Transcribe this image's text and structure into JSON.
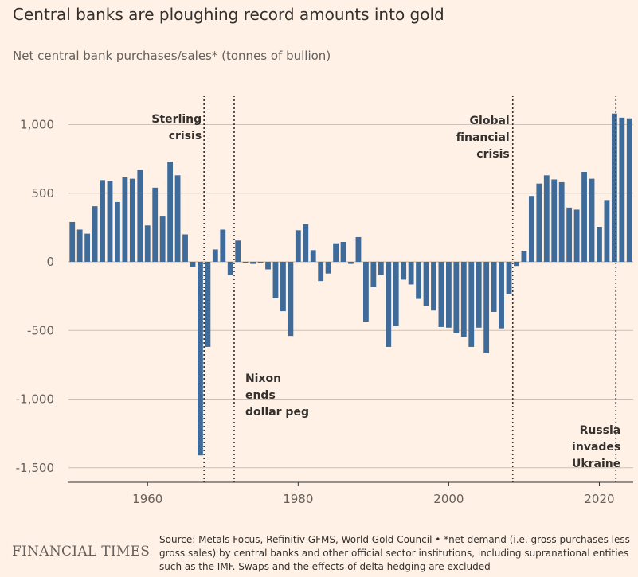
{
  "title": "Central banks are ploughing record amounts into gold",
  "subtitle": "Net central bank purchases/sales* (tonnes of bullion)",
  "source": "Source: Metals Focus, Refinitiv GFMS, World Gold Council • *net demand (i.e. gross purchases less gross sales) by central banks and other official sector institutions, including supranational entities such as the IMF. Swaps and the effects of delta hedging are excluded",
  "brand": "FINANCIAL TIMES",
  "colors": {
    "bar": "#3e6b99",
    "grid": "#ccc1b7",
    "background": "#fff1e5",
    "text": "#33302e"
  },
  "chart_data": {
    "type": "bar",
    "title": "Central banks are ploughing record amounts into gold",
    "subtitle": "Net central bank purchases/sales* (tonnes of bullion)",
    "xlim": [
      1949.5,
      2024.5
    ],
    "ylim": [
      -1600,
      1200
    ],
    "x_ticks": [
      1960,
      1980,
      2000,
      2020
    ],
    "y_ticks": [
      1000,
      500,
      0,
      -500,
      -1000,
      -1500
    ],
    "y_tick_labels": [
      "1,000",
      "500",
      "0",
      "-500",
      "-1,000",
      "-1,500"
    ],
    "grid": true,
    "x": [
      1950,
      1951,
      1952,
      1953,
      1954,
      1955,
      1956,
      1957,
      1958,
      1959,
      1960,
      1961,
      1962,
      1963,
      1964,
      1965,
      1966,
      1967,
      1968,
      1969,
      1970,
      1971,
      1972,
      1973,
      1974,
      1975,
      1976,
      1977,
      1978,
      1979,
      1980,
      1981,
      1982,
      1983,
      1984,
      1985,
      1986,
      1987,
      1988,
      1989,
      1990,
      1991,
      1992,
      1993,
      1994,
      1995,
      1996,
      1997,
      1998,
      1999,
      2000,
      2001,
      2002,
      2003,
      2004,
      2005,
      2006,
      2007,
      2008,
      2009,
      2010,
      2011,
      2012,
      2013,
      2014,
      2015,
      2016,
      2017,
      2018,
      2019,
      2020,
      2021,
      2022,
      2023,
      2024
    ],
    "values": [
      290,
      235,
      205,
      405,
      595,
      590,
      435,
      615,
      605,
      670,
      265,
      540,
      330,
      730,
      630,
      200,
      -35,
      -1410,
      -620,
      90,
      235,
      -95,
      155,
      -5,
      -15,
      -5,
      -55,
      -265,
      -360,
      -540,
      230,
      275,
      85,
      -140,
      -85,
      135,
      145,
      -15,
      180,
      -435,
      -185,
      -95,
      -620,
      -465,
      -130,
      -165,
      -270,
      -320,
      -355,
      -475,
      -480,
      -520,
      -545,
      -620,
      -480,
      -665,
      -365,
      -485,
      -235,
      -30,
      80,
      480,
      570,
      630,
      600,
      580,
      395,
      380,
      655,
      605,
      255,
      450,
      1080,
      1050,
      1045
    ],
    "annotations": [
      {
        "year": 1967.5,
        "lines": [
          "Sterling",
          "crisis"
        ]
      },
      {
        "year": 1971.5,
        "lines": [
          "Nixon",
          "ends",
          "dollar peg"
        ]
      },
      {
        "year": 2008.5,
        "lines": [
          "Global",
          "financial",
          "crisis"
        ]
      },
      {
        "year": 2022.2,
        "lines": [
          "Russia",
          "invades",
          "Ukraine"
        ]
      }
    ]
  }
}
